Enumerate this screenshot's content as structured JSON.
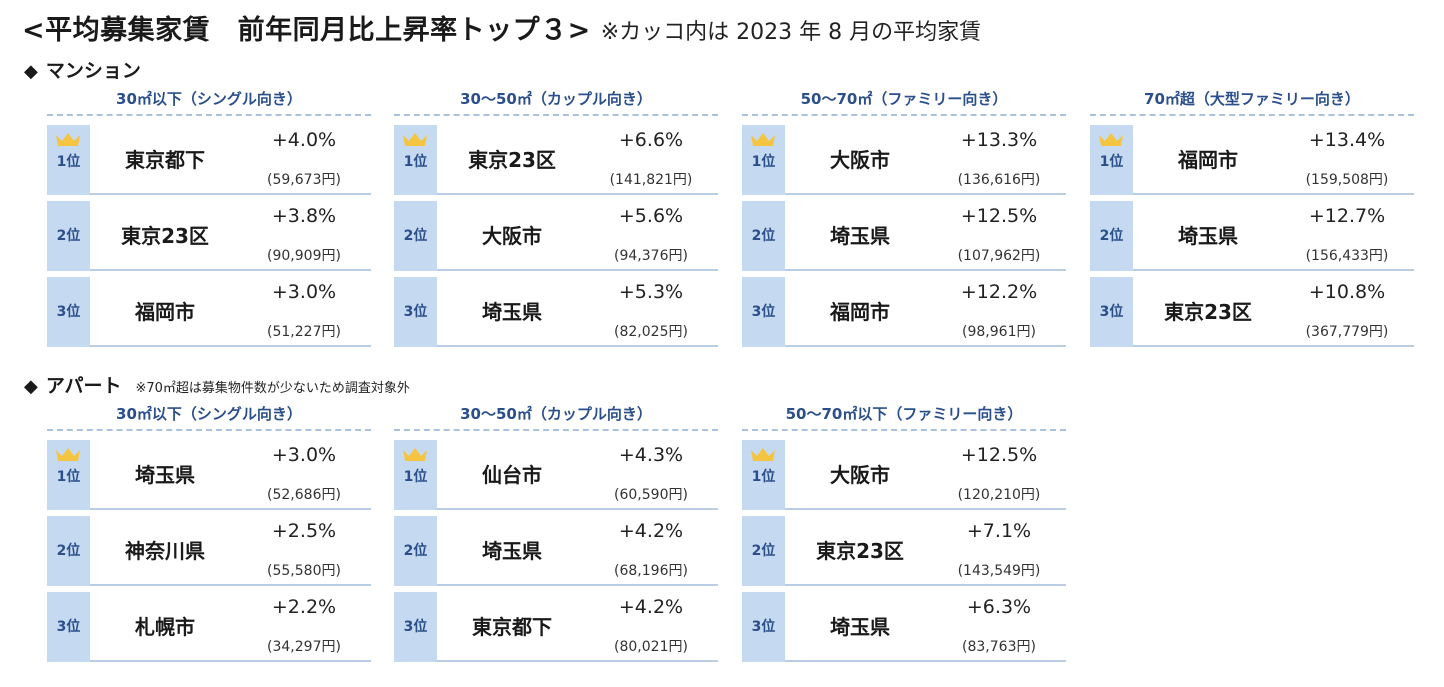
{
  "title": {
    "main": "<平均募集家賃　前年同月比上昇率トップ３>",
    "note": "※カッコ内は 2023 年 8 月の平均家賃"
  },
  "mansion": {
    "heading": "マンション",
    "groups": [
      {
        "header": "30㎡以下（シングル向き）",
        "rows": [
          {
            "rank": "1位",
            "place": "東京都下",
            "rate": "+4.0%",
            "rent": "(59,673円)"
          },
          {
            "rank": "2位",
            "place": "東京23区",
            "rate": "+3.8%",
            "rent": "(90,909円)"
          },
          {
            "rank": "3位",
            "place": "福岡市",
            "rate": "+3.0%",
            "rent": "(51,227円)"
          }
        ]
      },
      {
        "header": "30〜50㎡（カップル向き）",
        "rows": [
          {
            "rank": "1位",
            "place": "東京23区",
            "rate": "+6.6%",
            "rent": "(141,821円)"
          },
          {
            "rank": "2位",
            "place": "大阪市",
            "rate": "+5.6%",
            "rent": "(94,376円)"
          },
          {
            "rank": "3位",
            "place": "埼玉県",
            "rate": "+5.3%",
            "rent": "(82,025円)"
          }
        ]
      },
      {
        "header": "50〜70㎡（ファミリー向き）",
        "rows": [
          {
            "rank": "1位",
            "place": "大阪市",
            "rate": "+13.3%",
            "rent": "(136,616円)"
          },
          {
            "rank": "2位",
            "place": "埼玉県",
            "rate": "+12.5%",
            "rent": "(107,962円)"
          },
          {
            "rank": "3位",
            "place": "福岡市",
            "rate": "+12.2%",
            "rent": "(98,961円)"
          }
        ]
      },
      {
        "header": "70㎡超（大型ファミリー向き）",
        "rows": [
          {
            "rank": "1位",
            "place": "福岡市",
            "rate": "+13.4%",
            "rent": "(159,508円)"
          },
          {
            "rank": "2位",
            "place": "埼玉県",
            "rate": "+12.7%",
            "rent": "(156,433円)"
          },
          {
            "rank": "3位",
            "place": "東京23区",
            "rate": "+10.8%",
            "rent": "(367,779円)"
          }
        ]
      }
    ]
  },
  "apartment": {
    "heading": "アパート",
    "note": "※70㎡超は募集物件数が少ないため調査対象外",
    "groups": [
      {
        "header": "30㎡以下（シングル向き）",
        "rows": [
          {
            "rank": "1位",
            "place": "埼玉県",
            "rate": "+3.0%",
            "rent": "(52,686円)"
          },
          {
            "rank": "2位",
            "place": "神奈川県",
            "rate": "+2.5%",
            "rent": "(55,580円)"
          },
          {
            "rank": "3位",
            "place": "札幌市",
            "rate": "+2.2%",
            "rent": "(34,297円)"
          }
        ]
      },
      {
        "header": "30〜50㎡（カップル向き）",
        "rows": [
          {
            "rank": "1位",
            "place": "仙台市",
            "rate": "+4.3%",
            "rent": "(60,590円)"
          },
          {
            "rank": "2位",
            "place": "埼玉県",
            "rate": "+4.2%",
            "rent": "(68,196円)"
          },
          {
            "rank": "3位",
            "place": "東京都下",
            "rate": "+4.2%",
            "rent": "(80,021円)"
          }
        ]
      },
      {
        "header": "50〜70㎡以下（ファミリー向き）",
        "rows": [
          {
            "rank": "1位",
            "place": "大阪市",
            "rate": "+12.5%",
            "rent": "(120,210円)"
          },
          {
            "rank": "2位",
            "place": "東京23区",
            "rate": "+7.1%",
            "rent": "(143,549円)"
          },
          {
            "rank": "3位",
            "place": "埼玉県",
            "rate": "+6.3%",
            "rent": "(83,763円)"
          }
        ]
      }
    ]
  },
  "icons": {
    "section_marker": "diamond-icon",
    "first_place": "crown-icon"
  },
  "colors": {
    "rank_box": "#c5d9f1",
    "header_text": "#2b4f8a",
    "crown": "#f5c542"
  }
}
